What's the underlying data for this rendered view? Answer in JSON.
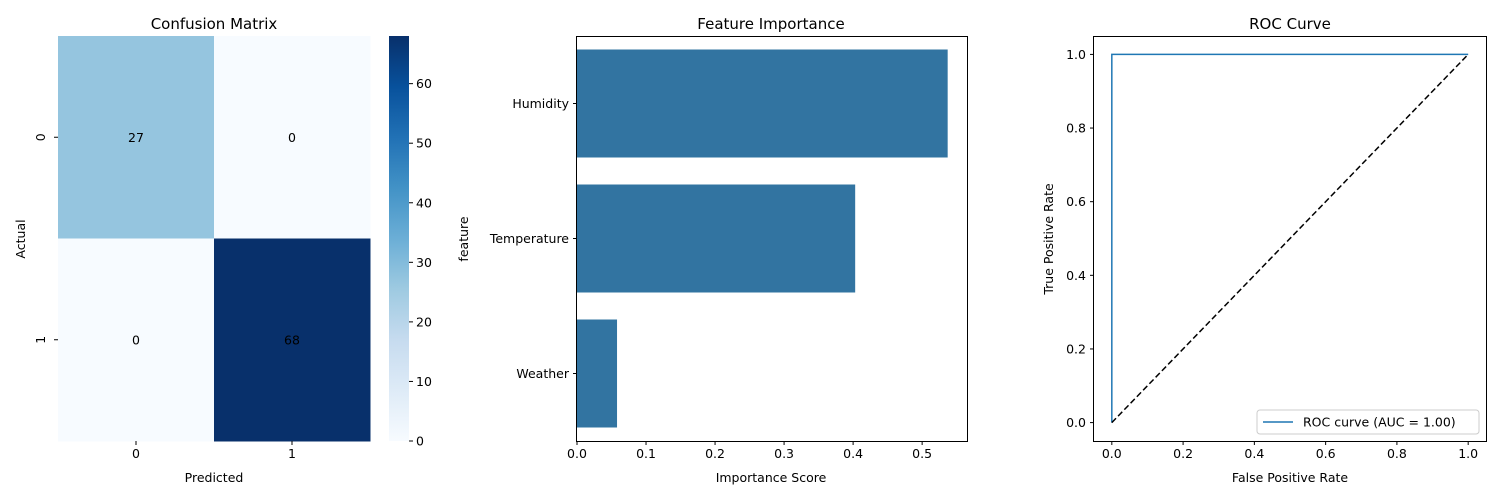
{
  "chart_data": [
    {
      "type": "heatmap",
      "title": "Confusion Matrix",
      "xlabel": "Predicted",
      "ylabel": "Actual",
      "x_categories": [
        "0",
        "1"
      ],
      "y_categories": [
        "0",
        "1"
      ],
      "values": [
        [
          27,
          0
        ],
        [
          0,
          68
        ]
      ],
      "colormap": "Blues",
      "color_range": [
        0,
        68
      ],
      "colorbar_ticks": [
        0,
        10,
        20,
        30,
        40,
        50,
        60
      ],
      "colorbar_tick_labels": [
        "0",
        "10",
        "20",
        "30",
        "40",
        "50",
        "60"
      ],
      "annotations": true,
      "grid": false
    },
    {
      "type": "bar",
      "orientation": "horizontal",
      "title": "Feature Importance",
      "xlabel": "Importance Score",
      "ylabel": "feature",
      "categories": [
        "Humidity",
        "Temperature",
        "Weather"
      ],
      "values": [
        0.537,
        0.403,
        0.058
      ],
      "xlim": [
        0,
        0.565
      ],
      "xticks": [
        0,
        0.1,
        0.2,
        0.3,
        0.4,
        0.5
      ],
      "xtick_labels": [
        "0.0",
        "0.1",
        "0.2",
        "0.3",
        "0.4",
        "0.5"
      ],
      "bar_color": "#3274a1",
      "grid": false
    },
    {
      "type": "line",
      "title": "ROC Curve",
      "xlabel": "False Positive Rate",
      "ylabel": "True Positive Rate",
      "xlim": [
        -0.05,
        1.05
      ],
      "ylim": [
        -0.05,
        1.05
      ],
      "xticks": [
        0,
        0.2,
        0.4,
        0.6,
        0.8,
        1.0
      ],
      "xtick_labels": [
        "0.0",
        "0.2",
        "0.4",
        "0.6",
        "0.8",
        "1.0"
      ],
      "yticks": [
        0,
        0.2,
        0.4,
        0.6,
        0.8,
        1.0
      ],
      "ytick_labels": [
        "0.0",
        "0.2",
        "0.4",
        "0.6",
        "0.8",
        "1.0"
      ],
      "series": [
        {
          "name": "ROC curve (AUC = 1.00)",
          "x": [
            0,
            0,
            1
          ],
          "y": [
            0,
            1,
            1
          ],
          "color": "#1f77b4",
          "style": "solid"
        },
        {
          "x": [
            0,
            1
          ],
          "y": [
            0,
            1
          ],
          "color": "#000000",
          "style": "dashed"
        }
      ],
      "legend": "lower-right",
      "grid": false
    }
  ]
}
